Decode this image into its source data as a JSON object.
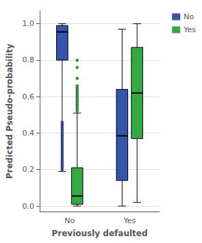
{
  "chart_data": {
    "type": "boxplot",
    "xlabel": "Previously defaulted",
    "ylabel": "Predicted Pseudo-probability",
    "categories": [
      "No",
      "Yes"
    ],
    "ylim": [
      -0.03,
      1.07
    ],
    "yticks": [
      {
        "value": 0.0,
        "label": "0.0"
      },
      0.2,
      0.4,
      0.6,
      0.8,
      {
        "value": 1.0,
        "label": "1.0"
      }
    ],
    "grid": true,
    "legend": "upper right",
    "series": [
      {
        "name": "No",
        "color": "#3355aa",
        "whisker_low": [
          0.19,
          0.0
        ],
        "q1": [
          0.8,
          0.14
        ],
        "median": [
          0.955,
          0.385
        ],
        "q3": [
          0.99,
          0.64
        ],
        "whisker_high": [
          1.0,
          0.97
        ],
        "outliers": [
          [
            0.46,
            0.45,
            0.44,
            0.43,
            0.42,
            0.41,
            0.4,
            0.39,
            0.38,
            0.37,
            0.36,
            0.35,
            0.34,
            0.33,
            0.32,
            0.31,
            0.3,
            0.29,
            0.28,
            0.27,
            0.26,
            0.25,
            0.24,
            0.23,
            0.22,
            0.21,
            0.2
          ],
          []
        ]
      },
      {
        "name": "Yes",
        "color": "#33aa44",
        "whisker_low": [
          0.0,
          0.02
        ],
        "q1": [
          0.01,
          0.37
        ],
        "median": [
          0.055,
          0.62
        ],
        "q3": [
          0.21,
          0.87
        ],
        "whisker_high": [
          0.51,
          1.0
        ],
        "outliers": [
          [
            0.8,
            0.76,
            0.7,
            0.66,
            0.65,
            0.64,
            0.63,
            0.62,
            0.61,
            0.6,
            0.59,
            0.58,
            0.57,
            0.56,
            0.55,
            0.54,
            0.53,
            0.52
          ],
          []
        ]
      }
    ]
  }
}
